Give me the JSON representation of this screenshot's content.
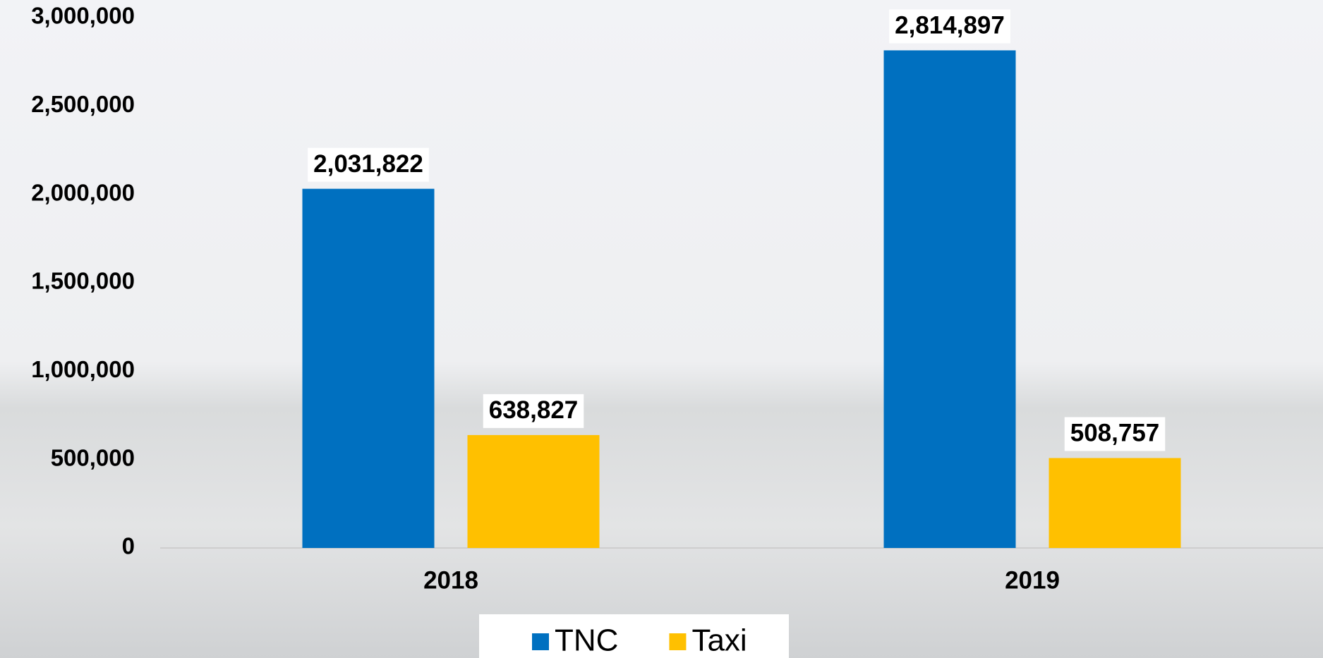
{
  "chart_data": {
    "type": "bar",
    "categories": [
      "2018",
      "2019"
    ],
    "series": [
      {
        "name": "TNC",
        "color": "#0070c0",
        "values": [
          2031822,
          2814897
        ],
        "value_labels": [
          "2,031,822",
          "2,814,897"
        ]
      },
      {
        "name": "Taxi",
        "color": "#ffc000",
        "values": [
          638827,
          508757
        ],
        "value_labels": [
          "638,827",
          "508,757"
        ]
      }
    ],
    "ylim": [
      0,
      3000000
    ],
    "yticks": [
      0,
      {
        "value": 500000,
        "label": "500,000"
      },
      {
        "value": 1000000,
        "label": "1,000,000"
      },
      {
        "value": 1500000,
        "label": "1,500,000"
      },
      {
        "value": 2000000,
        "label": "2,000,000"
      },
      {
        "value": 2500000,
        "label": "2,500,000"
      },
      {
        "value": 3000000,
        "label": "3,000,000"
      }
    ],
    "legend": "bottom"
  }
}
